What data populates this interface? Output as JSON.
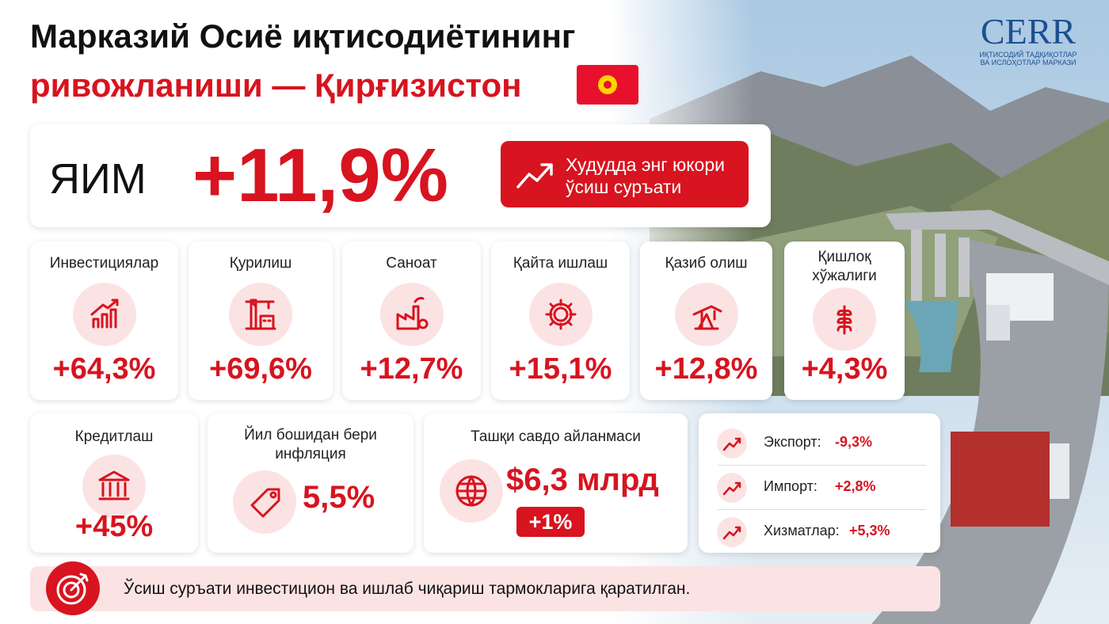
{
  "header": {
    "title_line1": "Марказий Осиё иқтисодиётининг",
    "title_line2": "ривожланиши — Қирғизистон"
  },
  "logo": {
    "name": "CERR",
    "line1": "ИҚТИСОДИЙ ТАДҚИҚОТЛАР",
    "line2": "ВА ИСЛОҲОТЛАР МАРКАЗИ"
  },
  "gdp": {
    "label": "ЯИМ",
    "value": "+11,9%",
    "note": [
      "Худудда энг юкори",
      "ўсиш суръати"
    ]
  },
  "sectors": [
    {
      "label": [
        "Инвестициялар"
      ],
      "value": "+64,3%"
    },
    {
      "label": [
        "Қурилиш"
      ],
      "value": "+69,6%"
    },
    {
      "label": [
        "Саноат"
      ],
      "value": "+12,7%"
    },
    {
      "label": [
        "Қайта ишлаш"
      ],
      "value": "+15,1%"
    },
    {
      "label": [
        "Қазиб олиш"
      ],
      "value": "+12,8%"
    },
    {
      "label": [
        "Қишлоқ",
        "хўжалиги"
      ],
      "value": "+4,3%"
    }
  ],
  "credit": {
    "label": "Кредитлаш",
    "value": "+45%"
  },
  "inflation": {
    "label": [
      "Йил бошидан бери",
      "инфляция"
    ],
    "value": "5,5%"
  },
  "trade": {
    "label": "Ташқи савдо айланмаси",
    "value": "$6,3 млрд",
    "change": "+1%"
  },
  "trade_breakdown": [
    {
      "label": "Экспорт:",
      "value": "-9,3%"
    },
    {
      "label": "Импорт:",
      "value": "+2,8%"
    },
    {
      "label": "Хизматлар:",
      "value": "+5,3%"
    }
  ],
  "footer": {
    "text": "Ўсиш суръати инвестицион ва ишлаб чиқариш тармокларига қаратилган."
  }
}
